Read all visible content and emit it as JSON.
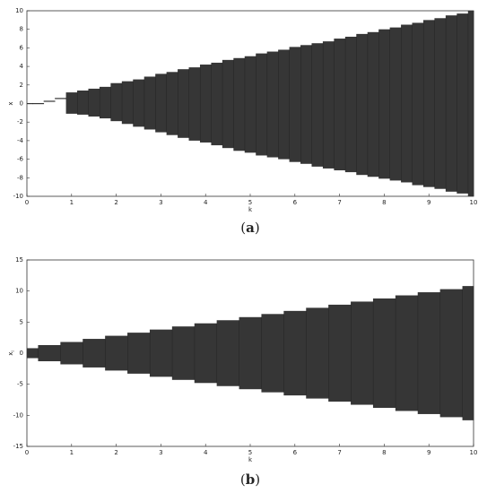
{
  "chart_data": [
    {
      "type": "band",
      "caption_open": "(",
      "caption_letter": "a",
      "caption_close": ")",
      "xlabel": "k",
      "ylabel": "x",
      "xlim": [
        0,
        10
      ],
      "ylim": [
        -10,
        10
      ],
      "xticks": [
        0,
        1,
        2,
        3,
        4,
        5,
        6,
        7,
        8,
        9,
        10
      ],
      "yticks": [
        -10,
        -8,
        -6,
        -4,
        -2,
        0,
        2,
        4,
        6,
        8,
        10
      ],
      "color": "#1a1a1a",
      "x": [
        0,
        0.25,
        0.5,
        0.75,
        1,
        1.25,
        1.5,
        1.75,
        2,
        2.25,
        2.5,
        2.75,
        3,
        3.25,
        3.5,
        3.75,
        4,
        4.25,
        4.5,
        4.75,
        5,
        5.25,
        5.5,
        5.75,
        6,
        6.25,
        6.5,
        6.75,
        7,
        7.25,
        7.5,
        7.75,
        8,
        8.25,
        8.5,
        8.75,
        9,
        9.25,
        9.5,
        9.75,
        10
      ],
      "upper": [
        0.05,
        0.05,
        0.3,
        0.6,
        1.2,
        1.4,
        1.6,
        1.8,
        2.2,
        2.4,
        2.6,
        2.9,
        3.2,
        3.4,
        3.7,
        3.9,
        4.2,
        4.4,
        4.7,
        4.9,
        5.1,
        5.4,
        5.6,
        5.8,
        6.1,
        6.3,
        6.5,
        6.7,
        7,
        7.2,
        7.5,
        7.7,
        8,
        8.2,
        8.5,
        8.7,
        9,
        9.2,
        9.5,
        9.7,
        10
      ],
      "lower": [
        -0.05,
        -0.05,
        0.2,
        0.5,
        -1.1,
        -1.2,
        -1.4,
        -1.6,
        -1.9,
        -2.2,
        -2.5,
        -2.8,
        -3.1,
        -3.4,
        -3.7,
        -4,
        -4.2,
        -4.5,
        -4.8,
        -5.1,
        -5.3,
        -5.6,
        -5.8,
        -6,
        -6.3,
        -6.5,
        -6.8,
        -7,
        -7.2,
        -7.4,
        -7.7,
        -7.9,
        -8.1,
        -8.3,
        -8.5,
        -8.8,
        -9,
        -9.2,
        -9.5,
        -9.7,
        -10
      ]
    },
    {
      "type": "band",
      "caption_open": "(",
      "caption_letter": "b",
      "caption_close": ")",
      "xlabel": "k",
      "ylabel": "x",
      "ylabel_subscript": "i",
      "xlim": [
        0,
        10
      ],
      "ylim": [
        -15,
        15
      ],
      "xticks": [
        0,
        1,
        2,
        3,
        4,
        5,
        6,
        7,
        8,
        9,
        10
      ],
      "yticks": [
        -15,
        -10,
        -5,
        0,
        5,
        10,
        15
      ],
      "color": "#1a1a1a",
      "x": [
        0,
        0.5,
        1,
        1.5,
        2,
        2.5,
        3,
        3.5,
        4,
        4.5,
        5,
        5.5,
        6,
        6.5,
        7,
        7.5,
        8,
        8.5,
        9,
        9.5,
        10
      ],
      "upper": [
        0.8,
        1.3,
        1.8,
        2.3,
        2.8,
        3.3,
        3.8,
        4.3,
        4.8,
        5.3,
        5.8,
        6.3,
        6.8,
        7.3,
        7.8,
        8.3,
        8.8,
        9.3,
        9.8,
        10.3,
        10.8
      ],
      "lower": [
        -0.8,
        -1.3,
        -1.8,
        -2.3,
        -2.8,
        -3.3,
        -3.8,
        -4.3,
        -4.8,
        -5.3,
        -5.8,
        -6.3,
        -6.8,
        -7.3,
        -7.8,
        -8.3,
        -8.8,
        -9.3,
        -9.8,
        -10.3,
        -10.8
      ]
    }
  ]
}
